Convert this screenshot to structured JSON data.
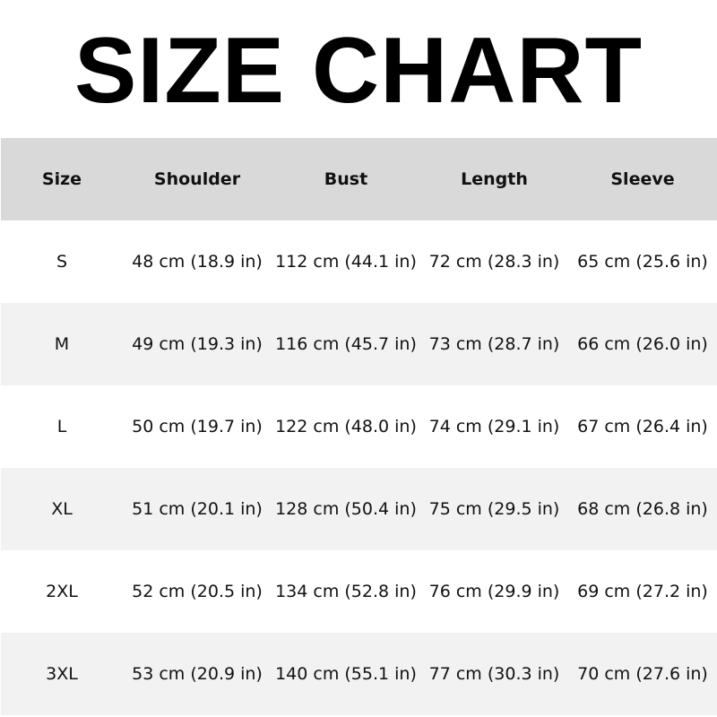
{
  "title": "SIZE CHART",
  "colors": {
    "header_bg": "#d9d9d9",
    "alt_row_bg": "#f2f2f2",
    "row_bg": "#ffffff"
  },
  "table": {
    "headers": [
      "Size",
      "Shoulder",
      "Bust",
      "Length",
      "Sleeve"
    ],
    "rows": [
      [
        "S",
        "48 cm (18.9 in)",
        "112 cm (44.1 in)",
        "72 cm (28.3 in)",
        "65 cm (25.6 in)"
      ],
      [
        "M",
        "49 cm (19.3 in)",
        "116 cm (45.7 in)",
        "73 cm (28.7 in)",
        "66 cm (26.0 in)"
      ],
      [
        "L",
        "50 cm (19.7 in)",
        "122 cm (48.0 in)",
        "74 cm (29.1 in)",
        "67 cm (26.4 in)"
      ],
      [
        "XL",
        "51 cm (20.1 in)",
        "128 cm (50.4 in)",
        "75 cm (29.5 in)",
        "68 cm (26.8 in)"
      ],
      [
        "2XL",
        "52 cm (20.5 in)",
        "134 cm (52.8 in)",
        "76 cm (29.9 in)",
        "69 cm (27.2 in)"
      ],
      [
        "3XL",
        "53 cm (20.9 in)",
        "140 cm (55.1 in)",
        "77 cm (30.3 in)",
        "70 cm (27.6 in)"
      ]
    ]
  }
}
